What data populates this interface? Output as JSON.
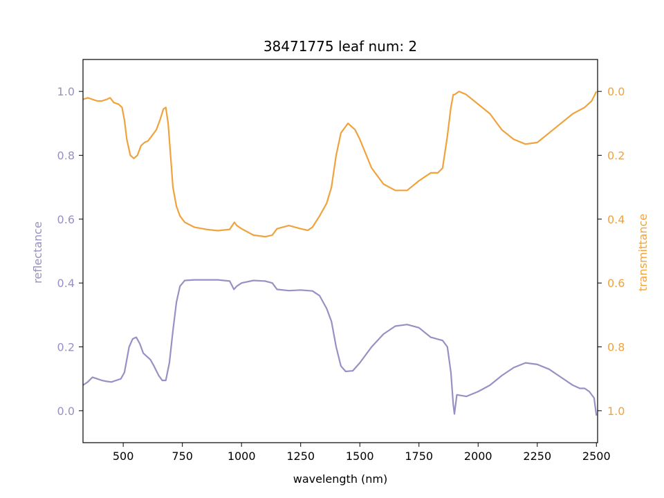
{
  "chart_data": {
    "type": "line",
    "title": "38471775 leaf num: 2",
    "xlabel": "wavelength (nm)",
    "xlim": [
      330,
      2505
    ],
    "x_ticks": [
      500,
      750,
      1000,
      1250,
      1500,
      1750,
      2000,
      2250,
      2500
    ],
    "left_axis": {
      "label": "reflectance",
      "color": "#9890c4",
      "ylim": [
        -0.1,
        1.1
      ],
      "ticks": [
        0.0,
        0.2,
        0.4,
        0.6,
        0.8,
        1.0
      ],
      "tick_labels": [
        "0.0",
        "0.2",
        "0.4",
        "0.6",
        "0.8",
        "1.0"
      ]
    },
    "right_axis": {
      "label": "transmittance",
      "color": "#f0a23c",
      "inverted": true,
      "ylim": [
        1.1,
        -0.1
      ],
      "ticks": [
        0.0,
        0.2,
        0.4,
        0.6,
        0.8,
        1.0
      ],
      "tick_labels": [
        "0.0",
        "0.2",
        "0.4",
        "0.6",
        "0.8",
        "1.0"
      ]
    },
    "series": [
      {
        "axis": "left",
        "color": "#9890c4",
        "points": [
          [
            330,
            0.08
          ],
          [
            350,
            0.09
          ],
          [
            370,
            0.105
          ],
          [
            390,
            0.1
          ],
          [
            410,
            0.095
          ],
          [
            430,
            0.092
          ],
          [
            450,
            0.09
          ],
          [
            470,
            0.095
          ],
          [
            490,
            0.1
          ],
          [
            505,
            0.12
          ],
          [
            515,
            0.16
          ],
          [
            525,
            0.2
          ],
          [
            540,
            0.225
          ],
          [
            555,
            0.23
          ],
          [
            570,
            0.21
          ],
          [
            585,
            0.18
          ],
          [
            600,
            0.17
          ],
          [
            615,
            0.16
          ],
          [
            630,
            0.14
          ],
          [
            650,
            0.11
          ],
          [
            665,
            0.095
          ],
          [
            680,
            0.095
          ],
          [
            695,
            0.15
          ],
          [
            710,
            0.25
          ],
          [
            725,
            0.34
          ],
          [
            740,
            0.39
          ],
          [
            760,
            0.408
          ],
          [
            800,
            0.41
          ],
          [
            850,
            0.41
          ],
          [
            900,
            0.41
          ],
          [
            950,
            0.406
          ],
          [
            968,
            0.38
          ],
          [
            980,
            0.39
          ],
          [
            1000,
            0.4
          ],
          [
            1050,
            0.408
          ],
          [
            1100,
            0.406
          ],
          [
            1130,
            0.4
          ],
          [
            1150,
            0.38
          ],
          [
            1200,
            0.376
          ],
          [
            1250,
            0.378
          ],
          [
            1300,
            0.375
          ],
          [
            1330,
            0.36
          ],
          [
            1360,
            0.32
          ],
          [
            1380,
            0.28
          ],
          [
            1400,
            0.2
          ],
          [
            1420,
            0.14
          ],
          [
            1440,
            0.123
          ],
          [
            1470,
            0.125
          ],
          [
            1500,
            0.15
          ],
          [
            1550,
            0.2
          ],
          [
            1600,
            0.24
          ],
          [
            1650,
            0.265
          ],
          [
            1700,
            0.27
          ],
          [
            1750,
            0.26
          ],
          [
            1800,
            0.23
          ],
          [
            1850,
            0.22
          ],
          [
            1870,
            0.2
          ],
          [
            1885,
            0.12
          ],
          [
            1895,
            0.02
          ],
          [
            1900,
            -0.01
          ],
          [
            1910,
            0.05
          ],
          [
            1950,
            0.045
          ],
          [
            2000,
            0.06
          ],
          [
            2050,
            0.08
          ],
          [
            2100,
            0.11
          ],
          [
            2150,
            0.135
          ],
          [
            2200,
            0.15
          ],
          [
            2250,
            0.145
          ],
          [
            2300,
            0.13
          ],
          [
            2350,
            0.105
          ],
          [
            2400,
            0.08
          ],
          [
            2430,
            0.07
          ],
          [
            2450,
            0.07
          ],
          [
            2470,
            0.06
          ],
          [
            2490,
            0.04
          ],
          [
            2500,
            -0.015
          ]
        ]
      },
      {
        "axis": "right",
        "color": "#f0a23c",
        "points": [
          [
            330,
            0.025
          ],
          [
            350,
            0.02
          ],
          [
            370,
            0.025
          ],
          [
            390,
            0.03
          ],
          [
            410,
            0.03
          ],
          [
            430,
            0.025
          ],
          [
            445,
            0.02
          ],
          [
            460,
            0.035
          ],
          [
            480,
            0.04
          ],
          [
            495,
            0.05
          ],
          [
            505,
            0.09
          ],
          [
            515,
            0.15
          ],
          [
            530,
            0.2
          ],
          [
            545,
            0.21
          ],
          [
            560,
            0.2
          ],
          [
            575,
            0.17
          ],
          [
            590,
            0.16
          ],
          [
            605,
            0.155
          ],
          [
            620,
            0.14
          ],
          [
            640,
            0.12
          ],
          [
            655,
            0.09
          ],
          [
            670,
            0.055
          ],
          [
            680,
            0.05
          ],
          [
            690,
            0.1
          ],
          [
            700,
            0.2
          ],
          [
            710,
            0.3
          ],
          [
            725,
            0.36
          ],
          [
            740,
            0.39
          ],
          [
            760,
            0.41
          ],
          [
            800,
            0.425
          ],
          [
            850,
            0.432
          ],
          [
            900,
            0.436
          ],
          [
            950,
            0.432
          ],
          [
            970,
            0.41
          ],
          [
            980,
            0.42
          ],
          [
            1000,
            0.43
          ],
          [
            1050,
            0.45
          ],
          [
            1100,
            0.455
          ],
          [
            1130,
            0.45
          ],
          [
            1150,
            0.43
          ],
          [
            1200,
            0.42
          ],
          [
            1250,
            0.43
          ],
          [
            1280,
            0.435
          ],
          [
            1300,
            0.425
          ],
          [
            1330,
            0.39
          ],
          [
            1360,
            0.35
          ],
          [
            1380,
            0.3
          ],
          [
            1400,
            0.2
          ],
          [
            1420,
            0.13
          ],
          [
            1450,
            0.1
          ],
          [
            1480,
            0.12
          ],
          [
            1500,
            0.15
          ],
          [
            1550,
            0.24
          ],
          [
            1600,
            0.29
          ],
          [
            1650,
            0.31
          ],
          [
            1700,
            0.31
          ],
          [
            1750,
            0.28
          ],
          [
            1800,
            0.255
          ],
          [
            1830,
            0.255
          ],
          [
            1850,
            0.24
          ],
          [
            1870,
            0.14
          ],
          [
            1885,
            0.05
          ],
          [
            1895,
            0.01
          ],
          [
            1900,
            0.01
          ],
          [
            1920,
            0.0
          ],
          [
            1950,
            0.01
          ],
          [
            2000,
            0.04
          ],
          [
            2050,
            0.07
          ],
          [
            2100,
            0.12
          ],
          [
            2150,
            0.15
          ],
          [
            2200,
            0.165
          ],
          [
            2250,
            0.16
          ],
          [
            2300,
            0.13
          ],
          [
            2350,
            0.1
          ],
          [
            2400,
            0.07
          ],
          [
            2450,
            0.05
          ],
          [
            2480,
            0.03
          ],
          [
            2500,
            0.0
          ]
        ]
      }
    ],
    "grid": false
  }
}
